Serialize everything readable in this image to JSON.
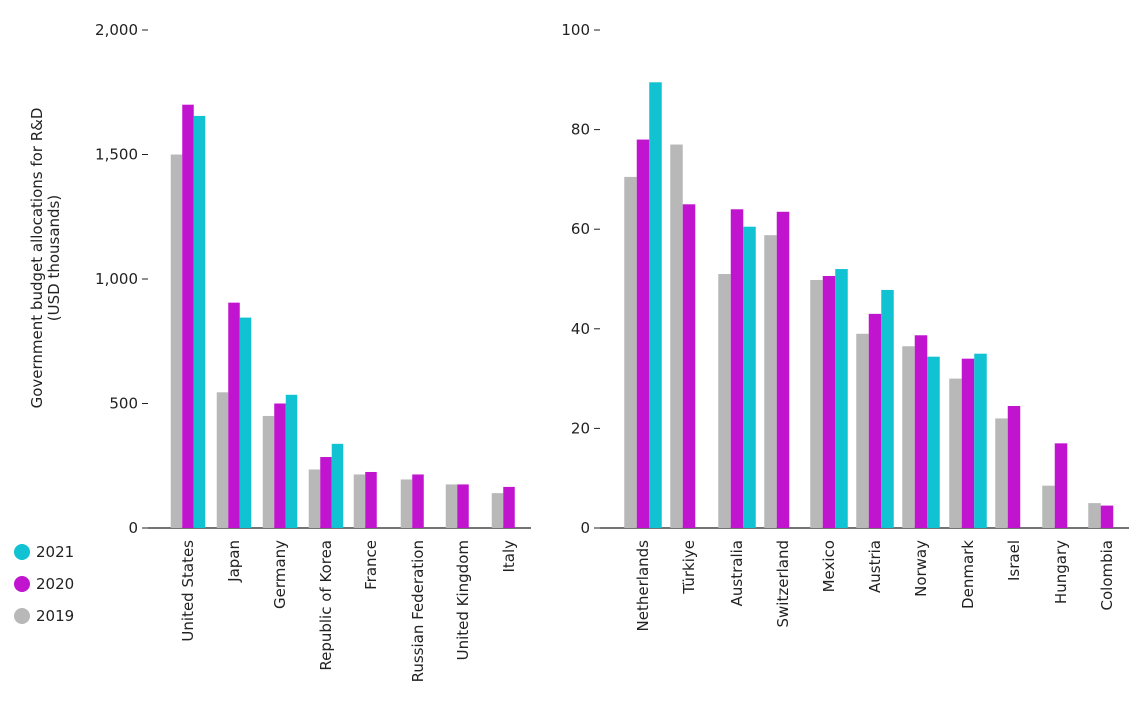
{
  "chart_data": [
    {
      "type": "bar",
      "ylabel": "Government budget allocations for R&D (USD thousands)",
      "ylim": [
        0,
        2000
      ],
      "yticks": [
        {
          "v": 0,
          "label": "0"
        },
        {
          "v": 500,
          "label": "500"
        },
        {
          "v": 1000,
          "label": "1,000"
        },
        {
          "v": 1500,
          "label": "1,500"
        },
        {
          "v": 2000,
          "label": "2,000"
        }
      ],
      "categories": [
        "United States",
        "Japan",
        "Germany",
        "Republic of Korea",
        "France",
        "Russian Federation",
        "United Kingdom",
        "Italy"
      ],
      "series": [
        {
          "name": "2019",
          "values": [
            1500,
            545,
            450,
            235,
            215,
            195,
            175,
            140
          ]
        },
        {
          "name": "2020",
          "values": [
            1700,
            905,
            500,
            285,
            225,
            215,
            175,
            165
          ]
        },
        {
          "name": "2021",
          "values": [
            1655,
            845,
            535,
            338,
            null,
            null,
            null,
            null
          ]
        }
      ]
    },
    {
      "type": "bar",
      "ylim": [
        0,
        100
      ],
      "yticks": [
        {
          "v": 0,
          "label": "0"
        },
        {
          "v": 20,
          "label": "20"
        },
        {
          "v": 40,
          "label": "40"
        },
        {
          "v": 60,
          "label": "60"
        },
        {
          "v": 80,
          "label": "80"
        },
        {
          "v": 100,
          "label": "100"
        }
      ],
      "categories": [
        "Netherlands",
        "Türkiye",
        "Australia",
        "Switzerland",
        "Mexico",
        "Austria",
        "Norway",
        "Denmark",
        "Israel",
        "Hungary",
        "Colombia"
      ],
      "series": [
        {
          "name": "2019",
          "values": [
            70.5,
            77,
            51,
            58.8,
            49.8,
            39,
            36.5,
            30,
            22,
            8.5,
            5
          ]
        },
        {
          "name": "2020",
          "values": [
            78,
            65,
            64,
            63.5,
            50.6,
            43,
            38.7,
            34,
            24.5,
            17,
            4.5
          ]
        },
        {
          "name": "2021",
          "values": [
            89.5,
            null,
            60.5,
            null,
            52,
            47.8,
            34.4,
            35,
            null,
            null,
            null
          ]
        }
      ]
    }
  ],
  "legend": [
    {
      "label": "2021",
      "color": "#11c2d3"
    },
    {
      "label": "2020",
      "color": "#c014cf"
    },
    {
      "label": "2019",
      "color": "#b8b8b8"
    }
  ],
  "colors": {
    "2019": "#b8b8b8",
    "2020": "#c014cf",
    "2021": "#11c2d3",
    "axis": "#222222"
  }
}
